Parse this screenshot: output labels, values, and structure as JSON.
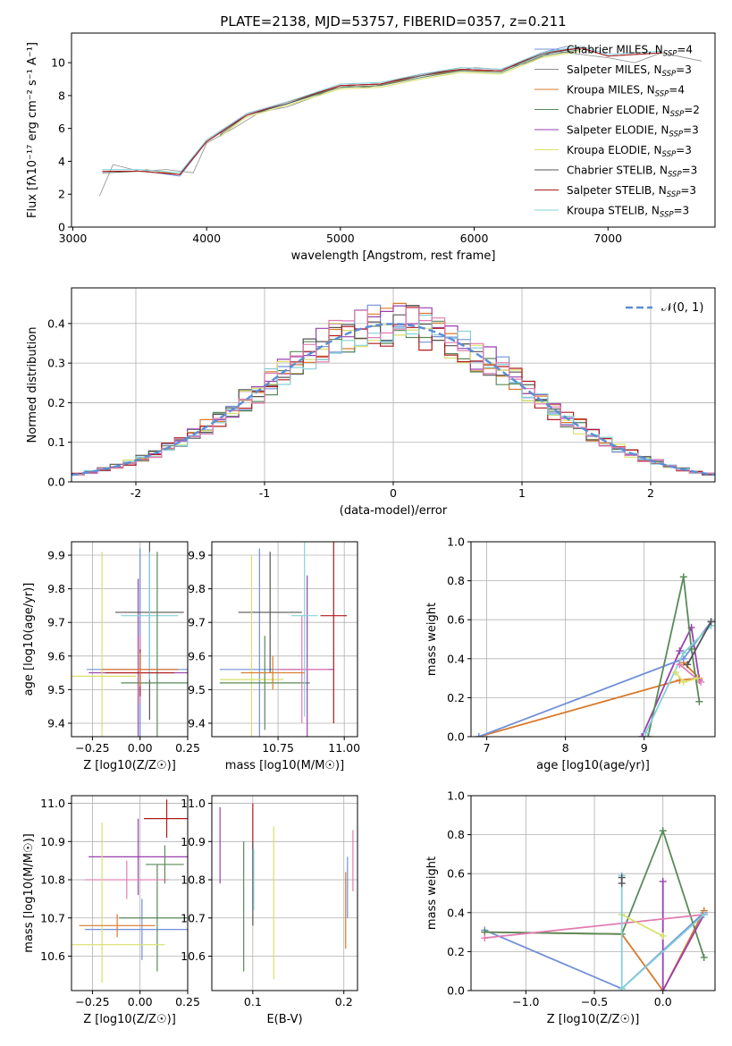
{
  "figure_title": "PLATE=2138, MJD=53757, FIBERID=0357, z=0.211",
  "colors": {
    "Chabrier MILES": "#7190d9",
    "Salpeter MILES": "#8c8c8c",
    "Kroupa MILES": "#d97a2c",
    "Chabrier ELODIE": "#5a8a5a",
    "Salpeter ELODIE": "#9a40b0",
    "Kroupa ELODIE": "#d9e06a",
    "Chabrier STELIB": "#555555",
    "Salpeter STELIB": "#b01a1a",
    "Kroupa STELIB": "#85d0d8",
    "pink": "#e07bb0",
    "gaussian": "#5b8ed6"
  },
  "chart_data": [
    {
      "id": "spectrum",
      "type": "line",
      "title": "PLATE=2138, MJD=53757, FIBERID=0357, z=0.211",
      "xlabel": "wavelength [Angstrom, rest frame]",
      "ylabel": "Flux [fλ10⁻¹⁷ erg cm⁻² s⁻¹ A⁻¹]",
      "xlim": [
        2990,
        7800
      ],
      "ylim": [
        0,
        11.8
      ],
      "xticks": [
        3000,
        4000,
        5000,
        6000,
        7000
      ],
      "yticks": [
        0,
        2,
        4,
        6,
        8,
        10
      ],
      "legend_position": "top-right",
      "series": [
        {
          "name": "Chabrier MILES, N_SSP=4",
          "color": "#7190d9",
          "x": [
            3540,
            3800,
            4000,
            4300,
            4600,
            5000,
            5300,
            5600,
            5900,
            6200,
            6500,
            6700
          ],
          "y": [
            3.4,
            3.1,
            5.2,
            6.9,
            7.5,
            8.6,
            8.7,
            9.3,
            9.6,
            9.5,
            10.6,
            11.0
          ]
        },
        {
          "name": "Salpeter MILES, N_SSP=3",
          "color": "#8c8c8c",
          "x": [
            3200,
            3300,
            3500,
            3700,
            3900,
            4000,
            4200,
            4400,
            4600,
            4800,
            5000,
            5200,
            5400,
            5600,
            5800,
            6000,
            6200,
            6400,
            6600,
            6800,
            7000,
            7200,
            7400,
            7700
          ],
          "y": [
            1.9,
            3.8,
            3.4,
            3.5,
            3.3,
            5.1,
            6.0,
            7.0,
            7.3,
            7.9,
            8.6,
            8.5,
            8.8,
            9.2,
            9.4,
            9.7,
            9.6,
            10.0,
            10.7,
            10.5,
            10.3,
            10.0,
            10.6,
            10.1
          ]
        },
        {
          "name": "Kroupa MILES, N_SSP=4",
          "color": "#d97a2c",
          "x": [
            3540,
            3800,
            4000,
            4300,
            4600,
            5000,
            5300,
            5600,
            5900,
            6200,
            6500,
            6700
          ],
          "y": [
            3.5,
            3.2,
            5.3,
            6.9,
            7.6,
            8.5,
            8.6,
            9.2,
            9.5,
            9.5,
            10.5,
            10.8
          ]
        },
        {
          "name": "Chabrier ELODIE, N_SSP=2",
          "color": "#5a8a5a",
          "x": [
            4100,
            4300,
            4600,
            5000,
            5300,
            5600,
            5900,
            6200,
            6500,
            6800
          ],
          "y": [
            5.6,
            6.8,
            7.5,
            8.5,
            8.6,
            9.1,
            9.5,
            9.4,
            10.4,
            10.8
          ]
        },
        {
          "name": "Salpeter ELODIE, N_SSP=3",
          "color": "#9a40b0",
          "x": [
            4100,
            4300,
            4600,
            5000,
            5300,
            5600,
            5900,
            6200,
            6500,
            6800
          ],
          "y": [
            5.7,
            6.9,
            7.6,
            8.6,
            8.7,
            9.2,
            9.6,
            9.5,
            10.5,
            10.9
          ]
        },
        {
          "name": "Kroupa ELODIE, N_SSP=3",
          "color": "#d9e06a",
          "x": [
            4100,
            4300,
            4600,
            5000,
            5300,
            5600,
            5900,
            6200,
            6500,
            6800
          ],
          "y": [
            5.5,
            6.7,
            7.4,
            8.4,
            8.5,
            9.0,
            9.4,
            9.3,
            10.3,
            10.7
          ]
        },
        {
          "name": "Chabrier STELIB, N_SSP=3",
          "color": "#555555",
          "x": [
            3220,
            3500,
            3800,
            4000,
            4300,
            4600,
            5000,
            5300,
            5600,
            5900,
            6200,
            6500,
            6800,
            7000,
            7400
          ],
          "y": [
            3.3,
            3.4,
            3.2,
            5.2,
            6.8,
            7.5,
            8.6,
            8.7,
            9.2,
            9.6,
            9.5,
            10.5,
            10.9,
            10.4,
            10.6
          ]
        },
        {
          "name": "Salpeter STELIB, N_SSP=3",
          "color": "#b01a1a",
          "x": [
            3220,
            3500,
            3800,
            4000,
            4300,
            4600,
            5000,
            5300,
            5600,
            5900,
            6200,
            6500,
            6800,
            7000,
            7400
          ],
          "y": [
            3.4,
            3.4,
            3.2,
            5.2,
            6.8,
            7.6,
            8.6,
            8.7,
            9.3,
            9.6,
            9.5,
            10.6,
            10.9,
            10.4,
            10.6
          ]
        },
        {
          "name": "Kroupa STELIB, N_SSP=3",
          "color": "#85d0d8",
          "x": [
            3220,
            3500,
            3800,
            4000,
            4300,
            4600,
            5000,
            5300,
            5600,
            5900,
            6200,
            6500,
            6800,
            7000,
            7400
          ],
          "y": [
            3.5,
            3.5,
            3.3,
            5.3,
            6.9,
            7.6,
            8.7,
            8.8,
            9.3,
            9.7,
            9.6,
            10.6,
            11.0,
            10.5,
            10.7
          ]
        }
      ]
    },
    {
      "id": "residuals",
      "type": "line",
      "xlabel": "(data-model)/error",
      "ylabel": "Normed distribution",
      "xlim": [
        -2.5,
        2.5
      ],
      "ylim": [
        0,
        0.49
      ],
      "xticks": [
        -2,
        -1,
        0,
        1,
        2
      ],
      "yticks": [
        0.0,
        0.1,
        0.2,
        0.3,
        0.4
      ],
      "grid": true,
      "legend_position": "top-right",
      "gaussian": {
        "name": "𝒩(0, 1)",
        "mean": 0,
        "sigma": 1
      },
      "histogram_bin_width": 0.1,
      "histogram_count": 9
    },
    {
      "id": "z-age",
      "type": "scatter",
      "xlabel": "Z [log10(Z/Z☉)]",
      "ylabel": "age [log10(age/yr)]",
      "xlim": [
        -0.36,
        0.25
      ],
      "ylim": [
        9.36,
        9.94
      ],
      "xticks": [
        -0.25,
        0.0,
        0.25
      ],
      "xticklabels": [
        "−0.25",
        "0.00",
        "0.25"
      ],
      "yticks": [
        9.4,
        9.5,
        9.6,
        9.7,
        9.8,
        9.9
      ],
      "grid": true,
      "points": [
        {
          "x": 0.0,
          "y": 9.56,
          "xerr": 0.28,
          "yerr": 0.36,
          "color": "#7190d9"
        },
        {
          "x": -0.01,
          "y": 9.55,
          "xerr": 0.26,
          "yerr": 0.28,
          "color": "#9a40b0"
        },
        {
          "x": 0.05,
          "y": 9.73,
          "xerr": 0.18,
          "yerr": 0.32,
          "color": "#555555"
        },
        {
          "x": 0.05,
          "y": 9.72,
          "xerr": 0.15,
          "yerr": 0.19,
          "color": "#85d0d8"
        },
        {
          "x": -0.2,
          "y": 9.54,
          "xerr": 0.18,
          "yerr": 0.37,
          "color": "#d9e06a"
        },
        {
          "x": 0.09,
          "y": 9.52,
          "xerr": 0.19,
          "yerr": 0.39,
          "color": "#5a8a5a"
        },
        {
          "x": 0.0,
          "y": 9.56,
          "xerr": 0.2,
          "yerr": 0.1,
          "color": "#e07bb0"
        },
        {
          "x": 0.0,
          "y": 9.55,
          "xerr": 0.18,
          "yerr": 0.07,
          "color": "#b01a1a"
        },
        {
          "x": 0.0,
          "y": 9.56,
          "xerr": 0.2,
          "yerr": 0.05,
          "color": "#d97a2c"
        }
      ]
    },
    {
      "id": "mass-age",
      "type": "scatter",
      "xlabel": "mass [log10(M/M☉)]",
      "ylabel": "",
      "xlim": [
        10.5,
        11.05
      ],
      "ylim": [
        9.36,
        9.94
      ],
      "xticks": [
        10.75,
        11.0
      ],
      "xticklabels": [
        "10.75",
        "11.00"
      ],
      "yticks": [
        9.4,
        9.5,
        9.6,
        9.7,
        9.8,
        9.9
      ],
      "grid": true,
      "points": [
        {
          "x": 10.68,
          "y": 9.56,
          "xerr": 0.15,
          "yerr": 0.36,
          "color": "#7190d9"
        },
        {
          "x": 10.72,
          "y": 9.73,
          "xerr": 0.12,
          "yerr": 0.18,
          "color": "#555555"
        },
        {
          "x": 10.65,
          "y": 9.53,
          "xerr": 0.12,
          "yerr": 0.37,
          "color": "#d9e06a"
        },
        {
          "x": 10.7,
          "y": 9.52,
          "xerr": 0.17,
          "yerr": 0.14,
          "color": "#5a8a5a"
        },
        {
          "x": 10.86,
          "y": 9.56,
          "xerr": 0.1,
          "yerr": 0.28,
          "color": "#9a40b0"
        },
        {
          "x": 10.84,
          "y": 9.56,
          "xerr": 0.1,
          "yerr": 0.16,
          "color": "#e07bb0"
        },
        {
          "x": 10.96,
          "y": 9.72,
          "xerr": 0.05,
          "yerr": 0.32,
          "color": "#b01a1a"
        },
        {
          "x": 10.85,
          "y": 9.72,
          "xerr": 0.05,
          "yerr": 0.3,
          "color": "#85d0d8"
        },
        {
          "x": 10.73,
          "y": 9.55,
          "xerr": 0.12,
          "yerr": 0.05,
          "color": "#d97a2c"
        }
      ]
    },
    {
      "id": "age-weight",
      "type": "line",
      "xlabel": "age [log10(age/yr)]",
      "ylabel": "mass weight",
      "xlim": [
        6.8,
        9.9
      ],
      "ylim": [
        0.0,
        1.0
      ],
      "xticks": [
        7,
        8,
        9
      ],
      "yticks": [
        0.0,
        0.2,
        0.4,
        0.6,
        0.8,
        1.0
      ],
      "grid": true,
      "series": [
        {
          "color": "#d97a2c",
          "x": [
            6.9,
            9.45,
            9.7,
            9.5
          ],
          "y": [
            0.0,
            0.29,
            0.3,
            0.38
          ]
        },
        {
          "color": "#9a40b0",
          "x": [
            8.97,
            9.45,
            9.6,
            9.7
          ],
          "y": [
            0.0,
            0.44,
            0.56,
            0.29
          ]
        },
        {
          "color": "#7190d9",
          "x": [
            6.9,
            9.5,
            9.85
          ],
          "y": [
            0.0,
            0.4,
            0.59
          ]
        },
        {
          "color": "#5a8a5a",
          "x": [
            9.05,
            9.5,
            9.6,
            9.7
          ],
          "y": [
            0.0,
            0.82,
            0.45,
            0.18
          ]
        },
        {
          "color": "#85d0d8",
          "x": [
            9.02,
            9.5,
            9.85
          ],
          "y": [
            0.02,
            0.43,
            0.57
          ]
        },
        {
          "color": "#e07bb0",
          "x": [
            9.45,
            9.72
          ],
          "y": [
            0.37,
            0.28
          ]
        },
        {
          "color": "#d9e06a",
          "x": [
            9.4,
            9.5,
            9.68
          ],
          "y": [
            0.33,
            0.28,
            0.3
          ]
        },
        {
          "color": "#555555",
          "x": [
            9.55,
            9.85
          ],
          "y": [
            0.37,
            0.59
          ]
        }
      ]
    },
    {
      "id": "z-mass",
      "type": "scatter",
      "xlabel": "Z [log10(Z/Z☉)]",
      "ylabel": "mass [log10(M/M☉)]",
      "xlim": [
        -0.36,
        0.25
      ],
      "ylim": [
        10.51,
        11.02
      ],
      "xticks": [
        -0.25,
        0.0,
        0.25
      ],
      "xticklabels": [
        "−0.25",
        "0.00",
        "0.25"
      ],
      "yticks": [
        10.6,
        10.7,
        10.8,
        10.9,
        11.0
      ],
      "grid": true,
      "points": [
        {
          "x": 0.01,
          "y": 10.67,
          "xerr": 0.3,
          "yerr": 0.08,
          "color": "#7190d9"
        },
        {
          "x": 0.09,
          "y": 10.7,
          "xerr": 0.2,
          "yerr": 0.14,
          "color": "#5a8a5a"
        },
        {
          "x": -0.01,
          "y": 10.86,
          "xerr": 0.26,
          "yerr": 0.1,
          "color": "#9a40b0"
        },
        {
          "x": -0.07,
          "y": 10.8,
          "xerr": 0.22,
          "yerr": 0.05,
          "color": "#e07bb0"
        },
        {
          "x": 0.14,
          "y": 10.96,
          "xerr": 0.12,
          "yerr": 0.05,
          "color": "#b01a1a"
        },
        {
          "x": 0.13,
          "y": 10.84,
          "xerr": 0.1,
          "yerr": 0.05,
          "color": "#5a8a5a"
        },
        {
          "x": -0.12,
          "y": 10.63,
          "xerr": 0.25,
          "yerr": 0.0,
          "color": "#d9e06a"
        },
        {
          "x": -0.2,
          "y": 10.74,
          "xerr": 0.0,
          "yerr": 0.21,
          "color": "#d9e06a"
        },
        {
          "x": -0.12,
          "y": 10.68,
          "xerr": 0.2,
          "yerr": 0.03,
          "color": "#d97a2c"
        }
      ]
    },
    {
      "id": "ebv-mass",
      "type": "scatter",
      "xlabel": "E(B-V)",
      "ylabel": "",
      "xlim": [
        0.055,
        0.215
      ],
      "ylim": [
        10.51,
        11.02
      ],
      "xticks": [
        0.1,
        0.2
      ],
      "xticklabels": [
        "0.1",
        "0.2"
      ],
      "yticks": [
        10.6,
        10.7,
        10.8,
        10.9,
        11.0
      ],
      "grid": true,
      "points": [
        {
          "x": 0.064,
          "y": 10.89,
          "xerr": 0,
          "yerr": 0.1,
          "color": "#9a40b0"
        },
        {
          "x": 0.09,
          "y": 10.73,
          "xerr": 0,
          "yerr": 0.17,
          "color": "#5a8a5a"
        },
        {
          "x": 0.1,
          "y": 10.94,
          "xerr": 0,
          "yerr": 0.06,
          "color": "#b01a1a"
        },
        {
          "x": 0.1,
          "y": 10.79,
          "xerr": 0,
          "yerr": 0.11,
          "color": "#555555"
        },
        {
          "x": 0.101,
          "y": 10.8,
          "xerr": 0,
          "yerr": 0.08,
          "color": "#85d0d8"
        },
        {
          "x": 0.123,
          "y": 10.74,
          "xerr": 0,
          "yerr": 0.2,
          "color": "#d9e06a"
        },
        {
          "x": 0.202,
          "y": 10.72,
          "xerr": 0,
          "yerr": 0.1,
          "color": "#d97a2c"
        },
        {
          "x": 0.204,
          "y": 10.78,
          "xerr": 0,
          "yerr": 0.08,
          "color": "#7190d9"
        },
        {
          "x": 0.21,
          "y": 10.85,
          "xerr": 0,
          "yerr": 0.08,
          "color": "#e07bb0"
        }
      ]
    },
    {
      "id": "z-weight",
      "type": "line",
      "xlabel": "Z [log10(Z/Z☉)]",
      "ylabel": "mass weight",
      "xlim": [
        -1.4,
        0.38
      ],
      "ylim": [
        0.0,
        1.0
      ],
      "xticks": [
        -1.0,
        -0.5,
        0.0
      ],
      "xticklabels": [
        "−1.0",
        "−0.5",
        "0.0"
      ],
      "yticks": [
        0.0,
        0.2,
        0.4,
        0.6,
        0.8,
        1.0
      ],
      "grid": true,
      "series": [
        {
          "color": "#7190d9",
          "x": [
            -1.3,
            -0.3,
            0.3
          ],
          "y": [
            0.31,
            0.01,
            0.4
          ]
        },
        {
          "color": "#d97a2c",
          "x": [
            -1.3,
            -0.3,
            0.0,
            0.3
          ],
          "y": [
            0.3,
            0.29,
            0.0,
            0.41
          ]
        },
        {
          "color": "#5a8a5a",
          "x": [
            -1.3,
            -0.3,
            0.0,
            0.3
          ],
          "y": [
            0.3,
            0.29,
            0.82,
            0.17
          ]
        },
        {
          "color": "#9a40b0",
          "x": [
            0.0,
            0.0,
            0.3
          ],
          "y": [
            0.56,
            0.0,
            0.39
          ]
        },
        {
          "color": "#e07bb0",
          "x": [
            -1.3,
            0.3
          ],
          "y": [
            0.27,
            0.39
          ]
        },
        {
          "color": "#d9e06a",
          "x": [
            -0.3,
            0.0
          ],
          "y": [
            0.39,
            0.28
          ]
        },
        {
          "color": "#85d0d8",
          "x": [
            -0.3,
            -0.3,
            0.3
          ],
          "y": [
            0.59,
            0.01,
            0.39
          ]
        },
        {
          "color": "#555555",
          "x": [
            -0.3,
            -0.3
          ],
          "y": [
            0.58,
            0.55
          ]
        }
      ]
    }
  ]
}
